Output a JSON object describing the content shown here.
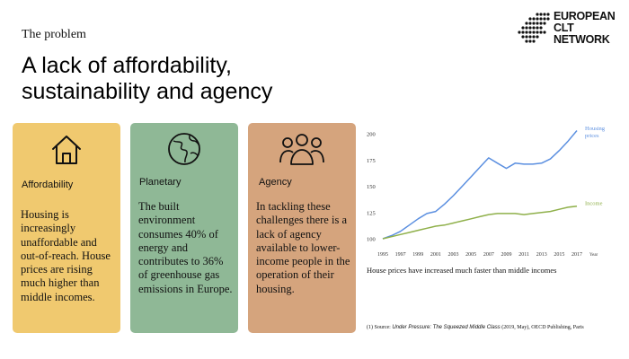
{
  "section_label": "The problem",
  "headline": {
    "line1": "A lack of affordability,",
    "line2": "sustainability and agency"
  },
  "logo": {
    "line1": "EUROPEAN",
    "line2": "CLT",
    "line3": "NETWORK"
  },
  "cards": [
    {
      "title": "Affordability",
      "icon": "house-icon",
      "color": "#f0c96f",
      "body": "Housing is increasingly unaffordable and out-of-reach. House prices are rising much higher than middle incomes."
    },
    {
      "title": "Planetary",
      "icon": "globe-icon",
      "color": "#8fb896",
      "body": "The built environment consumes 40% of energy and contributes to 36% of greenhouse gas emissions in Europe."
    },
    {
      "title": "Agency",
      "icon": "people-group-icon",
      "color": "#d5a47d",
      "body": "In tackling these challenges there is a lack of agency available to lower-income people in the operation of their housing."
    }
  ],
  "chart_data": {
    "type": "line",
    "xlabel": "Year",
    "ylim": [
      100,
      205
    ],
    "yticks": [
      "200",
      "175",
      "150",
      "125",
      "100"
    ],
    "xticks": [
      "1995",
      "1997",
      "1999",
      "2001",
      "2003",
      "2005",
      "2007",
      "2009",
      "2011",
      "2013",
      "2015",
      "2017"
    ],
    "x": [
      1995,
      1996,
      1997,
      1998,
      1999,
      2000,
      2001,
      2002,
      2003,
      2004,
      2005,
      2006,
      2007,
      2008,
      2009,
      2010,
      2011,
      2012,
      2013,
      2014,
      2015,
      2016,
      2017
    ],
    "series": [
      {
        "name": "Housing prices",
        "color": "#5b8fe0",
        "values": [
          100,
          103,
          107,
          113,
          119,
          124,
          126,
          133,
          141,
          150,
          159,
          168,
          177,
          172,
          167,
          172,
          171,
          171,
          172,
          176,
          184,
          193,
          203
        ]
      },
      {
        "name": "Income",
        "color": "#8fb04a",
        "values": [
          100,
          102,
          104,
          106,
          108,
          110,
          112,
          113,
          115,
          117,
          119,
          121,
          123,
          124,
          124,
          124,
          123,
          124,
          125,
          126,
          128,
          130,
          131
        ]
      }
    ]
  },
  "caption": "House prices have increased much faster than middle incomes",
  "source": {
    "prefix": "(1) Source: ",
    "title": "Under Pressure: The Squeezed Middle Class",
    "suffix": " (2019, May), OECD Publishing, Paris"
  }
}
